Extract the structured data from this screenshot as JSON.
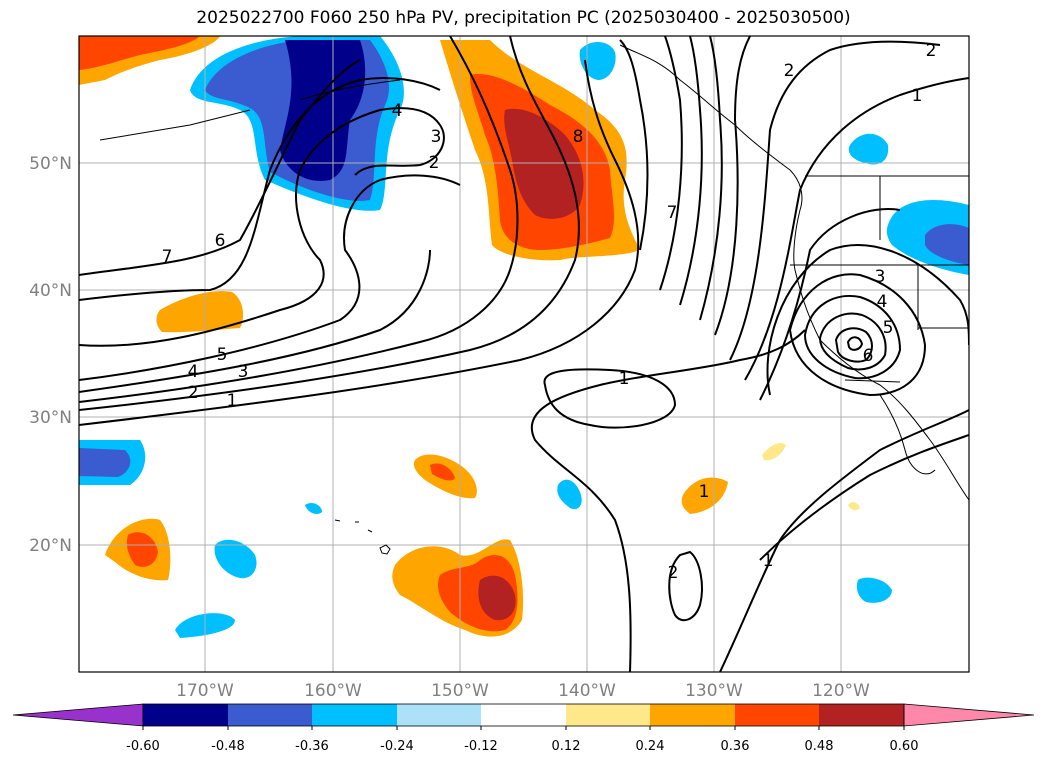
{
  "title": "2025022700 F060 250 hPa PV, precipitation PC (2025030400 - 2025030500)",
  "map": {
    "lat_ticks": [
      "50°N",
      "40°N",
      "30°N",
      "20°N"
    ],
    "lon_ticks": [
      "170°W",
      "160°W",
      "150°W",
      "140°W",
      "130°W",
      "120°W"
    ],
    "gridlines": true
  },
  "contour_labels": [
    "4",
    "3",
    "2",
    "8",
    "7",
    "6",
    "7",
    "5",
    "4",
    "3",
    "2",
    "1",
    "1",
    "2",
    "1",
    "3",
    "4",
    "5",
    "6",
    "2",
    "1",
    "2",
    "1"
  ],
  "colorbar": {
    "labels": [
      "-0.60",
      "-0.48",
      "-0.36",
      "-0.24",
      "-0.12",
      "0.12",
      "0.24",
      "0.36",
      "0.48",
      "0.60"
    ],
    "colors": [
      "#9932cc",
      "#00008b",
      "#3b5bd0",
      "#00bfff",
      "#ade1fa",
      "#ffffff",
      "#ffe88a",
      "#ffa500",
      "#ff4500",
      "#b22222",
      "#ff88aa"
    ]
  }
}
